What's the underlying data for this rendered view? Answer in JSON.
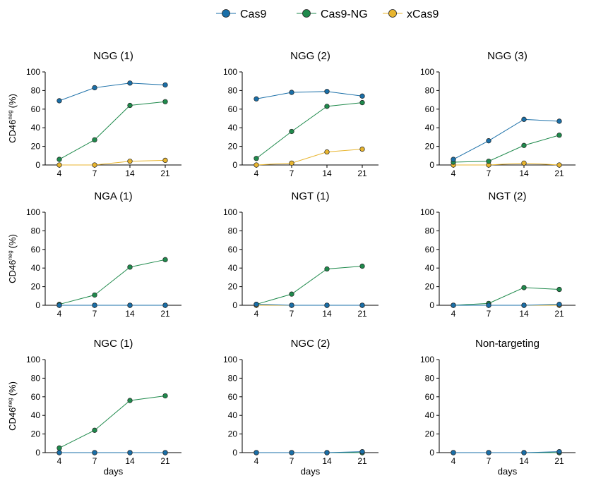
{
  "legend": {
    "entries": [
      {
        "name": "Cas9",
        "color": "#1a6fa8"
      },
      {
        "name": "Cas9-NG",
        "color": "#1f8a4c"
      },
      {
        "name": "xCas9",
        "color": "#e8b52f"
      }
    ]
  },
  "chart_data": [
    {
      "type": "line",
      "title": "NGG (1)",
      "ylabel": "CD46",
      "ylabel_superscript": "neg",
      "ylabel_unit": "(%)",
      "xlabel": "",
      "categories": [
        "4",
        "7",
        "14",
        "21"
      ],
      "ylim": [
        0,
        100
      ],
      "yticks": [
        0,
        20,
        40,
        60,
        80,
        100
      ],
      "series": [
        {
          "name": "Cas9",
          "values": [
            69,
            83,
            88,
            86
          ]
        },
        {
          "name": "Cas9-NG",
          "values": [
            6,
            27,
            64,
            68
          ]
        },
        {
          "name": "xCas9",
          "values": [
            0,
            0,
            4,
            5
          ]
        }
      ]
    },
    {
      "type": "line",
      "title": "NGG (2)",
      "ylabel": "",
      "xlabel": "",
      "categories": [
        "4",
        "7",
        "14",
        "21"
      ],
      "ylim": [
        0,
        100
      ],
      "yticks": [
        0,
        20,
        40,
        60,
        80,
        100
      ],
      "series": [
        {
          "name": "Cas9",
          "values": [
            71,
            78,
            79,
            74
          ]
        },
        {
          "name": "Cas9-NG",
          "values": [
            7,
            36,
            63,
            67
          ]
        },
        {
          "name": "xCas9",
          "values": [
            0,
            2,
            14,
            17
          ]
        }
      ]
    },
    {
      "type": "line",
      "title": "NGG (3)",
      "ylabel": "",
      "xlabel": "",
      "categories": [
        "4",
        "7",
        "14",
        "21"
      ],
      "ylim": [
        0,
        100
      ],
      "yticks": [
        0,
        20,
        40,
        60,
        80,
        100
      ],
      "series": [
        {
          "name": "Cas9",
          "values": [
            6,
            26,
            49,
            47
          ]
        },
        {
          "name": "Cas9-NG",
          "values": [
            3,
            4,
            21,
            32
          ]
        },
        {
          "name": "xCas9",
          "values": [
            0,
            0,
            2,
            0
          ]
        }
      ]
    },
    {
      "type": "line",
      "title": "NGA (1)",
      "ylabel": "CD46",
      "ylabel_superscript": "neg",
      "ylabel_unit": "(%)",
      "xlabel": "",
      "categories": [
        "4",
        "7",
        "14",
        "21"
      ],
      "ylim": [
        0,
        100
      ],
      "yticks": [
        0,
        20,
        40,
        60,
        80,
        100
      ],
      "series": [
        {
          "name": "Cas9",
          "values": [
            0,
            0,
            0,
            0
          ]
        },
        {
          "name": "Cas9-NG",
          "values": [
            1,
            11,
            41,
            49
          ]
        },
        {
          "name": "xCas9",
          "values": [
            0,
            0,
            0,
            0
          ]
        }
      ]
    },
    {
      "type": "line",
      "title": "NGT (1)",
      "ylabel": "",
      "xlabel": "",
      "categories": [
        "4",
        "7",
        "14",
        "21"
      ],
      "ylim": [
        0,
        100
      ],
      "yticks": [
        0,
        20,
        40,
        60,
        80,
        100
      ],
      "series": [
        {
          "name": "Cas9",
          "values": [
            1,
            0,
            0,
            0
          ]
        },
        {
          "name": "Cas9-NG",
          "values": [
            1,
            12,
            39,
            42
          ]
        },
        {
          "name": "xCas9",
          "values": [
            0,
            0,
            0,
            0
          ]
        }
      ]
    },
    {
      "type": "line",
      "title": "NGT (2)",
      "ylabel": "",
      "xlabel": "",
      "categories": [
        "4",
        "7",
        "14",
        "21"
      ],
      "ylim": [
        0,
        100
      ],
      "yticks": [
        0,
        20,
        40,
        60,
        80,
        100
      ],
      "series": [
        {
          "name": "Cas9",
          "values": [
            0,
            0,
            0,
            1
          ]
        },
        {
          "name": "Cas9-NG",
          "values": [
            0,
            2,
            19,
            17
          ]
        },
        {
          "name": "xCas9",
          "values": [
            0,
            0,
            0,
            0
          ]
        }
      ]
    },
    {
      "type": "line",
      "title": "NGC (1)",
      "ylabel": "CD46",
      "ylabel_superscript": "neg",
      "ylabel_unit": "(%)",
      "xlabel": "days",
      "categories": [
        "4",
        "7",
        "14",
        "21"
      ],
      "ylim": [
        0,
        100
      ],
      "yticks": [
        0,
        20,
        40,
        60,
        80,
        100
      ],
      "series": [
        {
          "name": "Cas9",
          "values": [
            0,
            0,
            0,
            0
          ]
        },
        {
          "name": "Cas9-NG",
          "values": [
            5,
            24,
            56,
            61
          ]
        },
        {
          "name": "xCas9",
          "values": [
            0,
            0,
            0,
            0
          ]
        }
      ]
    },
    {
      "type": "line",
      "title": "NGC (2)",
      "ylabel": "",
      "xlabel": "days",
      "categories": [
        "4",
        "7",
        "14",
        "21"
      ],
      "ylim": [
        0,
        100
      ],
      "yticks": [
        0,
        20,
        40,
        60,
        80,
        100
      ],
      "series": [
        {
          "name": "Cas9",
          "values": [
            0,
            0,
            0,
            1
          ]
        },
        {
          "name": "Cas9-NG",
          "values": [
            0,
            0,
            0,
            0
          ]
        },
        {
          "name": "xCas9",
          "values": [
            0,
            0,
            0,
            0
          ]
        }
      ]
    },
    {
      "type": "line",
      "title": "Non-targeting",
      "ylabel": "",
      "xlabel": "days",
      "categories": [
        "4",
        "7",
        "14",
        "21"
      ],
      "ylim": [
        0,
        100
      ],
      "yticks": [
        0,
        20,
        40,
        60,
        80,
        100
      ],
      "series": [
        {
          "name": "Cas9",
          "values": [
            0,
            0,
            0,
            1
          ]
        },
        {
          "name": "Cas9-NG",
          "values": [
            0,
            0,
            0,
            0
          ]
        },
        {
          "name": "xCas9",
          "values": [
            0,
            0,
            0,
            0
          ]
        }
      ]
    }
  ]
}
